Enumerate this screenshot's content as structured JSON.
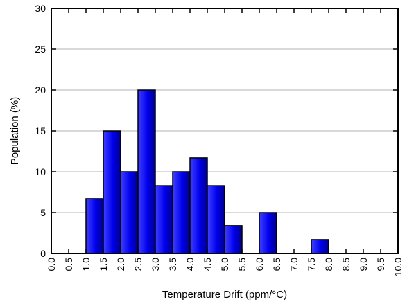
{
  "chart_data": {
    "type": "bar",
    "title": "",
    "xlabel": "Temperature Drift (ppm/°C)",
    "ylabel": "Population (%)",
    "xlim": [
      0,
      10
    ],
    "ylim": [
      0,
      30
    ],
    "x_ticks": [
      "0.0",
      "0.5",
      "1.0",
      "1.5",
      "2.0",
      "2.5",
      "3.0",
      "3.5",
      "4.0",
      "4.5",
      "5.0",
      "5.5",
      "6.0",
      "6.5",
      "7.0",
      "7.5",
      "8.0",
      "8.5",
      "9.0",
      "9.5",
      "10.0"
    ],
    "y_ticks": [
      "0",
      "5",
      "10",
      "15",
      "20",
      "25",
      "30"
    ],
    "bins": [
      {
        "start": 1.0,
        "end": 1.5,
        "value": 6.7
      },
      {
        "start": 1.5,
        "end": 2.0,
        "value": 15
      },
      {
        "start": 2.0,
        "end": 2.5,
        "value": 10
      },
      {
        "start": 2.5,
        "end": 3.0,
        "value": 20
      },
      {
        "start": 3.0,
        "end": 3.5,
        "value": 8.3
      },
      {
        "start": 3.5,
        "end": 4.0,
        "value": 10
      },
      {
        "start": 4.0,
        "end": 4.5,
        "value": 11.7
      },
      {
        "start": 4.5,
        "end": 5.0,
        "value": 8.3
      },
      {
        "start": 5.0,
        "end": 5.5,
        "value": 3.4
      },
      {
        "start": 6.0,
        "end": 6.5,
        "value": 5
      },
      {
        "start": 7.5,
        "end": 8.0,
        "value": 1.7
      }
    ],
    "grid": "horizontal",
    "colors": {
      "bar_light": "#4040ff",
      "bar_mid": "#0000ee",
      "bar_dark": "#00008a",
      "bar_stroke": "#000000",
      "grid": "#b3b3b3",
      "axis": "#000000"
    }
  }
}
